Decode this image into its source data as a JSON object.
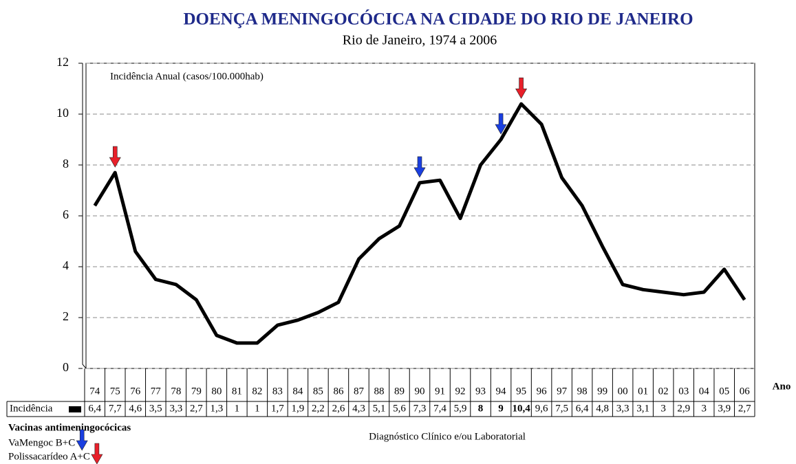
{
  "chart_data": {
    "type": "line",
    "title": "DOENÇA MENINGOCÓCICA NA CIDADE DO RIO DE JANEIRO",
    "subtitle": "Rio de Janeiro, 1974  a 2006",
    "annotation": "Incidência Anual (casos/100.000hab)",
    "footnote": "Diagnóstico Clínico e/ou Laboratorial",
    "x_label": "Ano",
    "categories": [
      "74",
      "75",
      "76",
      "77",
      "78",
      "79",
      "80",
      "81",
      "82",
      "83",
      "84",
      "85",
      "86",
      "87",
      "88",
      "89",
      "90",
      "91",
      "92",
      "93",
      "94",
      "95",
      "96",
      "97",
      "98",
      "99",
      "00",
      "01",
      "02",
      "03",
      "04",
      "05",
      "06"
    ],
    "series": [
      {
        "name": "Incidência",
        "color": "#000000",
        "values": [
          6.4,
          7.7,
          4.6,
          3.5,
          3.3,
          2.7,
          1.3,
          1,
          1,
          1.7,
          1.9,
          2.2,
          2.6,
          4.3,
          5.1,
          5.6,
          7.3,
          7.4,
          5.9,
          8,
          9,
          10.4,
          9.6,
          7.5,
          6.4,
          4.8,
          3.3,
          3.1,
          3,
          2.9,
          3,
          3.9,
          2.7
        ],
        "value_labels": [
          "6,4",
          "7,7",
          "4,6",
          "3,5",
          "3,3",
          "2,7",
          "1,3",
          "1",
          "1",
          "1,7",
          "1,9",
          "2,2",
          "2,6",
          "4,3",
          "5,1",
          "5,6",
          "7,3",
          "7,4",
          "5,9",
          "8",
          "9",
          "10,4",
          "9,6",
          "7,5",
          "6,4",
          "4,8",
          "3,3",
          "3,1",
          "3",
          "2,9",
          "3",
          "3,9",
          "2,7"
        ]
      }
    ],
    "highlighted": [
      "93",
      "94",
      "95"
    ],
    "highlight_color": "#e8202a",
    "ylim": [
      0,
      12
    ],
    "yticks": [
      0,
      2,
      4,
      6,
      8,
      10,
      12
    ],
    "grid": true,
    "vaccines": {
      "title": "Vacinas antimeningocócicas",
      "items": [
        {
          "name": "VaMengoc B+C",
          "color": "#1a3fe0",
          "years": [
            "90",
            "94"
          ]
        },
        {
          "name": "Polissacarídeo A+C",
          "color": "#e8202a",
          "years": [
            "75",
            "95"
          ]
        }
      ]
    }
  }
}
